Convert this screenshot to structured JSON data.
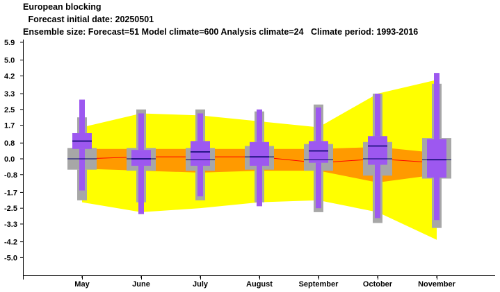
{
  "header": {
    "title": "European blocking",
    "subtitle": " Forecast initial date: 20250501",
    "info": "Ensemble size: Forecast=51 Model climate=600 Analysis climate=24   Climate period: 1993-2016"
  },
  "chart_data": {
    "type": "box-plot (monthly forecast vs model climate)",
    "categories": [
      "May",
      "June",
      "July",
      "August",
      "September",
      "October",
      "November"
    ],
    "y_ticks": [
      "5.9",
      "5.0",
      "4.2",
      "3.3",
      "2.5",
      "1.7",
      "0.8",
      "0.0",
      "-0.8",
      "-1.7",
      "-2.5",
      "-3.3",
      "-4.2",
      "-5.0"
    ],
    "ylim": [
      -5.9,
      5.9
    ],
    "colors": {
      "climate_outer": "#ffff00",
      "climate_inner": "#ff9a00",
      "climate_median": "#ff0000",
      "forecast": "#9d58f0",
      "analysis": "#a7a7a7",
      "median_line": "#000066"
    },
    "climate_band_outer": {
      "upper": [
        1.6,
        2.3,
        2.2,
        1.9,
        1.6,
        3.3,
        4.0
      ],
      "lower": [
        -2.2,
        -2.7,
        -2.5,
        -2.2,
        -2.1,
        -2.7,
        -4.1
      ]
    },
    "climate_band_inner": {
      "upper": [
        0.5,
        0.5,
        0.5,
        0.5,
        0.5,
        0.6,
        0.3
      ],
      "lower": [
        -0.5,
        -0.6,
        -0.7,
        -0.6,
        -0.6,
        -1.2,
        -0.8
      ]
    },
    "climate_median": [
      0.0,
      0.1,
      0.1,
      0.1,
      -0.2,
      0.0,
      -0.2
    ],
    "analysis_boxes": [
      {
        "min": -2.1,
        "q1": -0.55,
        "median": 0.0,
        "q3": 0.55,
        "max": 2.1
      },
      {
        "min": -2.2,
        "q1": -0.6,
        "median": 0.0,
        "q3": 0.55,
        "max": 2.5
      },
      {
        "min": -2.1,
        "q1": -0.6,
        "median": -0.05,
        "q3": 0.55,
        "max": 2.5
      },
      {
        "min": -2.2,
        "q1": -0.55,
        "median": 0.1,
        "q3": 0.65,
        "max": 2.4
      },
      {
        "min": -2.7,
        "q1": -0.6,
        "median": -0.05,
        "q3": 0.75,
        "max": 2.75
      },
      {
        "min": -3.25,
        "q1": -0.85,
        "median": 0.0,
        "q3": 0.85,
        "max": 3.3
      },
      {
        "min": -3.5,
        "q1": -1.0,
        "median": -0.05,
        "q3": 1.05,
        "max": 3.8
      }
    ],
    "forecast_boxes": [
      {
        "min": -1.6,
        "q1": 0.5,
        "median": 0.9,
        "q3": 1.3,
        "max": 3.0
      },
      {
        "min": -2.8,
        "q1": -0.35,
        "median": 0.0,
        "q3": 0.45,
        "max": 2.3
      },
      {
        "min": -1.9,
        "q1": -0.35,
        "median": 0.35,
        "q3": 0.9,
        "max": 2.3
      },
      {
        "min": -2.4,
        "q1": -0.35,
        "median": 0.1,
        "q3": 0.85,
        "max": 2.5
      },
      {
        "min": -2.5,
        "q1": -0.2,
        "median": 0.4,
        "q3": 0.9,
        "max": 2.6
      },
      {
        "min": -3.0,
        "q1": -0.3,
        "median": 0.65,
        "q3": 1.15,
        "max": 3.3
      },
      {
        "min": -3.1,
        "q1": -0.95,
        "median": -0.05,
        "q3": 1.0,
        "max": 4.35
      }
    ]
  }
}
